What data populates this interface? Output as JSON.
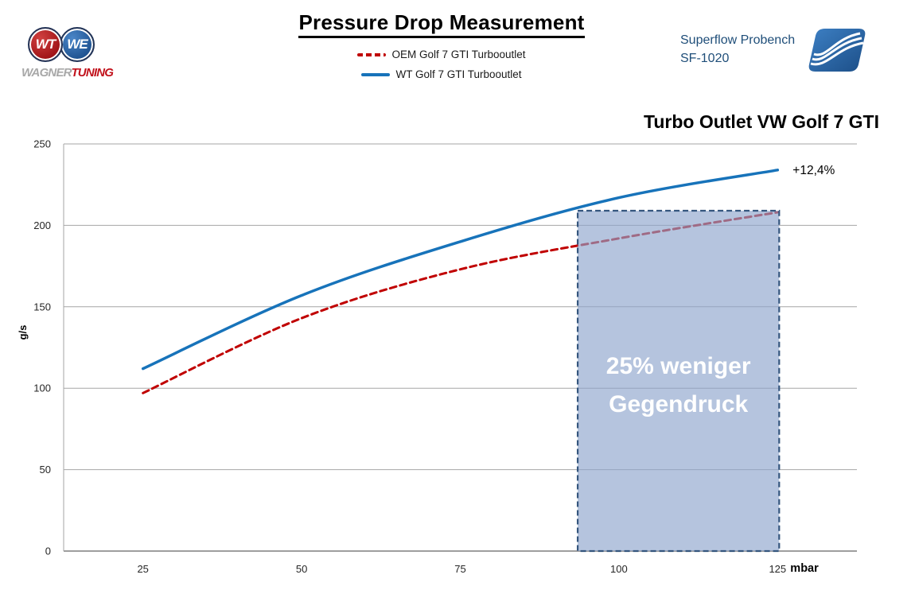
{
  "header": {
    "title": "Pressure Drop Measurement",
    "brand": {
      "icon": "wagner-tuning-badges",
      "monogram_left": "WT",
      "monogram_right": "WE",
      "word1": "WAGNER",
      "word2": "TUNING",
      "word1_color": "#a8a8a8",
      "word2_color": "#c1121c"
    },
    "legend": [
      {
        "label": "OEM Golf 7 GTI Turbooutlet",
        "color": "#c00000",
        "style": "dashed"
      },
      {
        "label": "WT Golf 7 GTI Turbooutlet",
        "color": "#1773ba",
        "style": "solid"
      }
    ],
    "bench": {
      "line1": "Superflow Probench",
      "line2": "SF-1020",
      "text_color": "#1f4e79",
      "logo_icon": "superflow-wave-logo",
      "logo_color": "#2a6db5"
    }
  },
  "chart_data": {
    "type": "line",
    "title": "Turbo Outlet VW Golf 7 GTI",
    "xlabel": "mbar",
    "ylabel": "g/s",
    "x": [
      25,
      50,
      75,
      100,
      125
    ],
    "ylim": [
      0,
      250
    ],
    "yticks": [
      0,
      50,
      100,
      150,
      200,
      250
    ],
    "grid": true,
    "legend_position": "top-center",
    "smooth_lines": true,
    "series": [
      {
        "name": "OEM Golf 7 GTI Turbooutlet",
        "color": "#c00000",
        "dash": true,
        "values": [
          97,
          143,
          173,
          192,
          208
        ]
      },
      {
        "name": "WT Golf 7 GTI Turbooutlet",
        "color": "#1773ba",
        "dash": false,
        "values": [
          112,
          157,
          190,
          217,
          234
        ]
      }
    ],
    "annotation": {
      "text": "+12,4%",
      "at_x": 125,
      "at_y": 234,
      "color": "#000000"
    },
    "highlight_region": {
      "label_lines": [
        "25% weniger",
        "Gegendruck"
      ],
      "x_start": 93.5,
      "x_end": 125,
      "y_bottom": 0,
      "y_top": 209,
      "fill": "rgba(141,164,205,0.65)",
      "border_color": "#35567e",
      "text_color": "#ffffff"
    },
    "axis_color": "#7f7f7f",
    "grid_color": "#a6a6a6",
    "tick_color": "#262626"
  }
}
